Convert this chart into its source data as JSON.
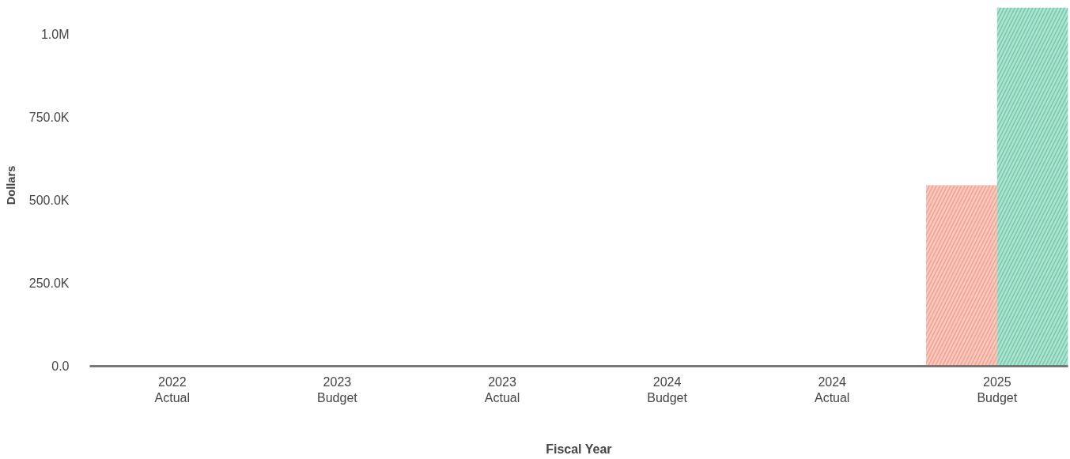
{
  "chart_data": {
    "type": "bar",
    "xlabel": "Fiscal Year",
    "ylabel": "Dollars",
    "categories": [
      "2022\nActual",
      "2023\nBudget",
      "2023\nActual",
      "2024\nBudget",
      "2024\nActual",
      "2025\nBudget"
    ],
    "series": [
      {
        "color": "#f4a08e",
        "values": [
          null,
          null,
          null,
          null,
          null,
          545000
        ]
      },
      {
        "color": "#72cbab",
        "values": [
          null,
          null,
          null,
          null,
          null,
          1080000
        ]
      }
    ],
    "ylim": [
      0,
      1090000
    ],
    "yticks": [
      {
        "value": 0,
        "label": "0.0"
      },
      {
        "value": 250000,
        "label": "250.0K"
      },
      {
        "value": 500000,
        "label": "500.0K"
      },
      {
        "value": 750000,
        "label": "750.0K"
      },
      {
        "value": 1000000,
        "label": "1.0M"
      }
    ],
    "grid": false
  }
}
